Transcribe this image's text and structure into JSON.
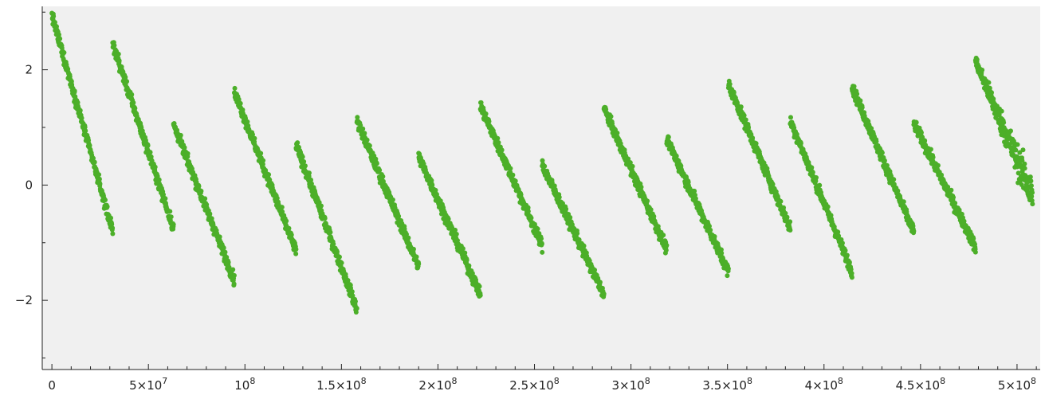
{
  "colors": {
    "point": "#4caf29",
    "plot_bg": "#f0f0f0",
    "axis": "#222222"
  },
  "chart_data": {
    "type": "scatter",
    "title": "",
    "xlabel": "",
    "ylabel": "",
    "xlim": [
      -5000000,
      512000000
    ],
    "ylim": [
      -3.2,
      3.1
    ],
    "grid": false,
    "legend": "none",
    "x_ticks": [
      {
        "value": 0,
        "label": "0"
      },
      {
        "value": 50000000,
        "label": "5×10",
        "exp": "7"
      },
      {
        "value": 100000000,
        "label": "10",
        "exp": "8"
      },
      {
        "value": 150000000,
        "label": "1.5×10",
        "exp": "8"
      },
      {
        "value": 200000000,
        "label": "2×10",
        "exp": "8"
      },
      {
        "value": 250000000,
        "label": "2.5×10",
        "exp": "8"
      },
      {
        "value": 300000000,
        "label": "3×10",
        "exp": "8"
      },
      {
        "value": 350000000,
        "label": "3.5×10",
        "exp": "8"
      },
      {
        "value": 400000000,
        "label": "4×10",
        "exp": "8"
      },
      {
        "value": 450000000,
        "label": "4.5×10",
        "exp": "8"
      },
      {
        "value": 500000000,
        "label": "5×10",
        "exp": "8"
      }
    ],
    "y_ticks": [
      {
        "value": -2,
        "label": "−2"
      },
      {
        "value": 0,
        "label": "0"
      },
      {
        "value": 2,
        "label": "2"
      }
    ],
    "series": [
      {
        "segments": [
          {
            "x_start": 0,
            "x_end": 31500000,
            "y_start": 2.95,
            "y_end": -0.8
          },
          {
            "x_start": 31500000,
            "x_end": 63000000,
            "y_start": 2.45,
            "y_end": -0.75
          },
          {
            "x_start": 63000000,
            "x_end": 94500000,
            "y_start": 1.05,
            "y_end": -1.65
          },
          {
            "x_start": 94500000,
            "x_end": 126500000,
            "y_start": 1.62,
            "y_end": -1.15
          },
          {
            "x_start": 126500000,
            "x_end": 158000000,
            "y_start": 0.7,
            "y_end": -2.15
          },
          {
            "x_start": 158000000,
            "x_end": 190000000,
            "y_start": 1.12,
            "y_end": -1.42
          },
          {
            "x_start": 190000000,
            "x_end": 222000000,
            "y_start": 0.5,
            "y_end": -1.9
          },
          {
            "x_start": 222000000,
            "x_end": 254000000,
            "y_start": 1.38,
            "y_end": -1.05
          },
          {
            "x_start": 254000000,
            "x_end": 286000000,
            "y_start": 0.35,
            "y_end": -1.9
          },
          {
            "x_start": 286000000,
            "x_end": 318500000,
            "y_start": 1.33,
            "y_end": -1.12
          },
          {
            "x_start": 318500000,
            "x_end": 350500000,
            "y_start": 0.8,
            "y_end": -1.5
          },
          {
            "x_start": 350500000,
            "x_end": 382500000,
            "y_start": 1.75,
            "y_end": -0.75
          },
          {
            "x_start": 382500000,
            "x_end": 414500000,
            "y_start": 1.12,
            "y_end": -1.5
          },
          {
            "x_start": 414500000,
            "x_end": 446500000,
            "y_start": 1.7,
            "y_end": -0.82
          },
          {
            "x_start": 446500000,
            "x_end": 478500000,
            "y_start": 1.08,
            "y_end": -1.08
          },
          {
            "x_start": 478500000,
            "x_end": 508000000,
            "y_start": 2.15,
            "y_end": -0.2
          }
        ],
        "noise": 0.05
      }
    ]
  }
}
